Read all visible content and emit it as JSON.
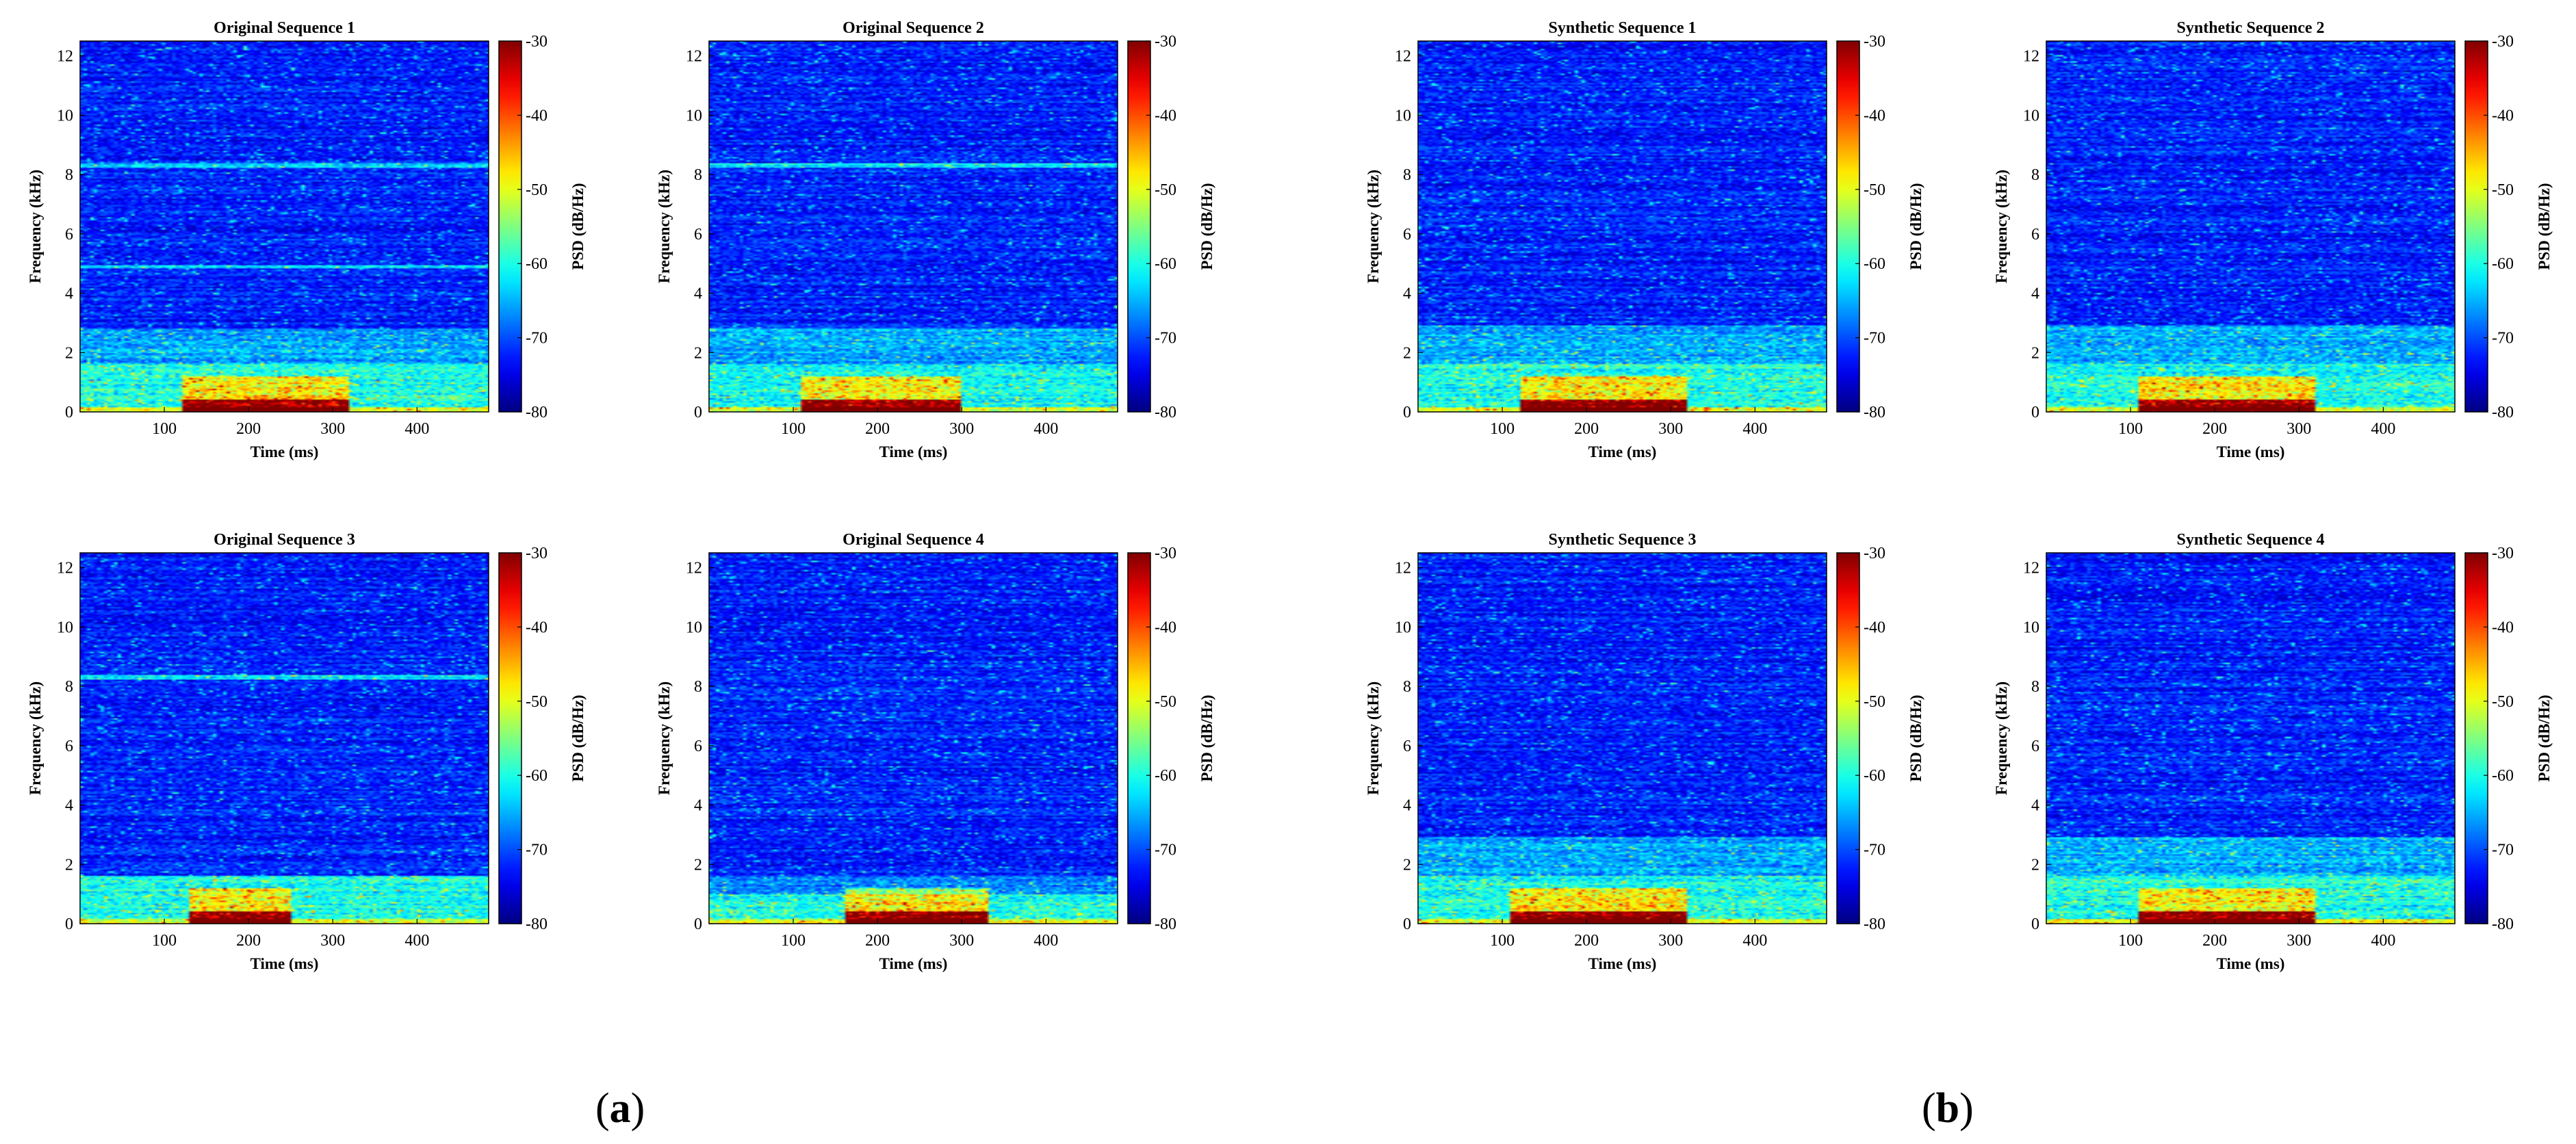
{
  "chart_data": [
    {
      "type": "heatmap",
      "panel": "(a)",
      "title": "Original Sequence 1",
      "seed": 11,
      "band": 2.8,
      "hot": [
        120,
        320
      ],
      "lines": [
        8.3,
        4.9
      ],
      "xlabel": "Time (ms)",
      "ylabel": "Frequency (kHz)",
      "colorbar_label": "PSD (dB/Hz)",
      "xlim": [
        0,
        485
      ],
      "ylim": [
        0,
        12.5
      ],
      "clim": [
        -80,
        -30
      ],
      "xticks": [
        100,
        200,
        300,
        400
      ],
      "yticks": [
        0,
        2,
        4,
        6,
        8,
        10,
        12
      ],
      "cticks": [
        -30,
        -40,
        -50,
        -60,
        -70,
        -80
      ]
    },
    {
      "type": "heatmap",
      "panel": "(a)",
      "title": "Original Sequence 2",
      "seed": 23,
      "band": 2.8,
      "hot": [
        110,
        300
      ],
      "lines": [
        8.3
      ],
      "xlabel": "Time (ms)",
      "ylabel": "Frequency (kHz)",
      "colorbar_label": "PSD (dB/Hz)",
      "xlim": [
        0,
        485
      ],
      "ylim": [
        0,
        12.5
      ],
      "clim": [
        -80,
        -30
      ],
      "xticks": [
        100,
        200,
        300,
        400
      ],
      "yticks": [
        0,
        2,
        4,
        6,
        8,
        10,
        12
      ],
      "cticks": [
        -30,
        -40,
        -50,
        -60,
        -70,
        -80
      ]
    },
    {
      "type": "heatmap",
      "panel": "(b)",
      "title": "Synthetic Sequence 1",
      "seed": 37,
      "band": 2.9,
      "hot": [
        120,
        320
      ],
      "lines": [],
      "xlabel": "Time (ms)",
      "ylabel": "Frequency (kHz)",
      "colorbar_label": "PSD (dB/Hz)",
      "xlim": [
        0,
        485
      ],
      "ylim": [
        0,
        12.5
      ],
      "clim": [
        -80,
        -30
      ],
      "xticks": [
        100,
        200,
        300,
        400
      ],
      "yticks": [
        0,
        2,
        4,
        6,
        8,
        10,
        12
      ],
      "cticks": [
        -30,
        -40,
        -50,
        -60,
        -70,
        -80
      ]
    },
    {
      "type": "heatmap",
      "panel": "(b)",
      "title": "Synthetic Sequence 2",
      "seed": 41,
      "band": 2.9,
      "hot": [
        110,
        320
      ],
      "lines": [],
      "xlabel": "Time (ms)",
      "ylabel": "Frequency (kHz)",
      "colorbar_label": "PSD (dB/Hz)",
      "xlim": [
        0,
        485
      ],
      "ylim": [
        0,
        12.5
      ],
      "clim": [
        -80,
        -30
      ],
      "xticks": [
        100,
        200,
        300,
        400
      ],
      "yticks": [
        0,
        2,
        4,
        6,
        8,
        10,
        12
      ],
      "cticks": [
        -30,
        -40,
        -50,
        -60,
        -70,
        -80
      ]
    },
    {
      "type": "heatmap",
      "panel": "(a)",
      "title": "Original Sequence 3",
      "seed": 53,
      "band": 1.6,
      "hot": [
        130,
        250
      ],
      "lines": [
        8.3
      ],
      "xlabel": "Time (ms)",
      "ylabel": "Frequency (kHz)",
      "colorbar_label": "PSD (dB/Hz)",
      "xlim": [
        0,
        485
      ],
      "ylim": [
        0,
        12.5
      ],
      "clim": [
        -80,
        -30
      ],
      "xticks": [
        100,
        200,
        300,
        400
      ],
      "yticks": [
        0,
        2,
        4,
        6,
        8,
        10,
        12
      ],
      "cticks": [
        -30,
        -40,
        -50,
        -60,
        -70,
        -80
      ]
    },
    {
      "type": "heatmap",
      "panel": "(a)",
      "title": "Original Sequence 4",
      "seed": 67,
      "band": 1.0,
      "hot": [
        160,
        330
      ],
      "lines": [],
      "xlabel": "Time (ms)",
      "ylabel": "Frequency (kHz)",
      "colorbar_label": "PSD (dB/Hz)",
      "xlim": [
        0,
        485
      ],
      "ylim": [
        0,
        12.5
      ],
      "clim": [
        -80,
        -30
      ],
      "xticks": [
        100,
        200,
        300,
        400
      ],
      "yticks": [
        0,
        2,
        4,
        6,
        8,
        10,
        12
      ],
      "cticks": [
        -30,
        -40,
        -50,
        -60,
        -70,
        -80
      ]
    },
    {
      "type": "heatmap",
      "panel": "(b)",
      "title": "Synthetic Sequence 3",
      "seed": 79,
      "band": 2.9,
      "hot": [
        110,
        320
      ],
      "lines": [],
      "xlabel": "Time (ms)",
      "ylabel": "Frequency (kHz)",
      "colorbar_label": "PSD (dB/Hz)",
      "xlim": [
        0,
        485
      ],
      "ylim": [
        0,
        12.5
      ],
      "clim": [
        -80,
        -30
      ],
      "xticks": [
        100,
        200,
        300,
        400
      ],
      "yticks": [
        0,
        2,
        4,
        6,
        8,
        10,
        12
      ],
      "cticks": [
        -30,
        -40,
        -50,
        -60,
        -70,
        -80
      ]
    },
    {
      "type": "heatmap",
      "panel": "(b)",
      "title": "Synthetic Sequence 4",
      "seed": 97,
      "band": 2.9,
      "hot": [
        110,
        320
      ],
      "lines": [],
      "xlabel": "Time (ms)",
      "ylabel": "Frequency (kHz)",
      "colorbar_label": "PSD (dB/Hz)",
      "xlim": [
        0,
        485
      ],
      "ylim": [
        0,
        12.5
      ],
      "clim": [
        -80,
        -30
      ],
      "xticks": [
        100,
        200,
        300,
        400
      ],
      "yticks": [
        0,
        2,
        4,
        6,
        8,
        10,
        12
      ],
      "cticks": [
        -30,
        -40,
        -50,
        -60,
        -70,
        -80
      ]
    }
  ],
  "panel_labels": {
    "a": "a",
    "b": "b"
  },
  "colormap": "jet"
}
